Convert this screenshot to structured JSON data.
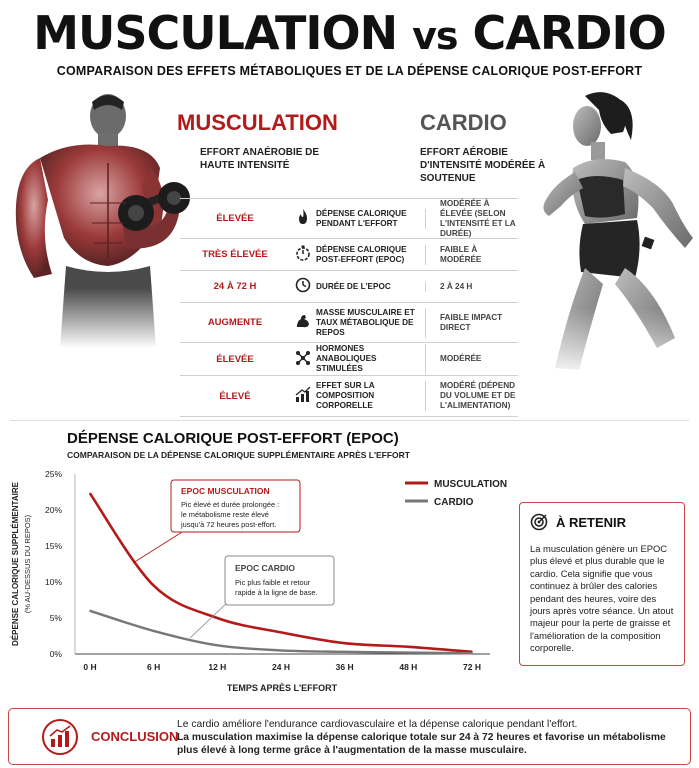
{
  "header": {
    "title_a": "MUSCULATION",
    "title_vs": "vs",
    "title_b": "CARDIO",
    "subtitle": "COMPARAISON DES EFFETS MÉTABOLIQUES ET DE LA DÉPENSE CALORIQUE POST-EFFORT"
  },
  "columns": {
    "left": {
      "heading": "MUSCULATION",
      "sub": "EFFORT ANAÉROBIE DE HAUTE INTENSITÉ"
    },
    "right": {
      "heading": "CARDIO",
      "sub": "EFFORT AÉROBIE D'INTENSITÉ MODÉRÉE À SOUTENUE"
    }
  },
  "table": [
    {
      "musc": "ÉLEVÉE",
      "icon": "flame-icon",
      "label": "DÉPENSE CALORIQUE PENDANT L'EFFORT",
      "cardio": "MODÉRÉE À ÉLEVÉE (SELON L'INTENSITÉ ET LA DURÉE)"
    },
    {
      "musc": "TRÈS ÉLEVÉE",
      "icon": "timer-icon",
      "label": "DÉPENSE CALORIQUE POST-EFFORT (EPOC)",
      "cardio": "FAIBLE À MODÉRÉE"
    },
    {
      "musc": "24 À 72 H",
      "icon": "clock-icon",
      "label": "DURÉE DE L'EPOC",
      "cardio": "2 À 24 H"
    },
    {
      "musc": "AUGMENTE",
      "icon": "bicep-icon",
      "label": "MASSE MUSCULAIRE ET TAUX MÉTABOLIQUE DE REPOS",
      "cardio": "FAIBLE IMPACT DIRECT"
    },
    {
      "musc": "ÉLEVÉE",
      "icon": "molecule-icon",
      "label": "HORMONES ANABOLIQUES STIMULÉES",
      "cardio": "MODÉRÉE"
    },
    {
      "musc": "ÉLEVÉ",
      "icon": "growth-chart-icon",
      "label": "EFFET SUR LA COMPOSITION CORPORELLE",
      "cardio": "MODÉRÉ (DÉPEND DU VOLUME ET DE L'ALIMENTATION)"
    }
  ],
  "chart_section": {
    "title": "DÉPENSE CALORIQUE POST-EFFORT (EPOC)",
    "subtitle": "COMPARAISON DE LA DÉPENSE CALORIQUE SUPPLÉMENTAIRE APRÈS L'EFFORT",
    "annot_musc_title": "EPOC MUSCULATION",
    "annot_musc_text": [
      "Pic élevé et durée prolongée :",
      "le métabolisme reste élevé",
      "jusqu'à 72 heures post-effort."
    ],
    "annot_cardio_title": "EPOC CARDIO",
    "annot_cardio_text": [
      "Pic plus faible et retour",
      "rapide à la ligne de base."
    ]
  },
  "chart_data": {
    "type": "line",
    "categories": [
      "0 H",
      "6 H",
      "12 H",
      "24 H",
      "36 H",
      "48 H",
      "72 H"
    ],
    "x": [
      0,
      1,
      2,
      3,
      4,
      5,
      6
    ],
    "series": [
      {
        "name": "MUSCULATION",
        "color": "#b31b1b",
        "values": [
          22.3,
          9.5,
          5.0,
          3.0,
          1.5,
          1.0,
          0.3
        ]
      },
      {
        "name": "CARDIO",
        "color": "#777777",
        "values": [
          6.0,
          3.2,
          1.2,
          0.5,
          0.3,
          0.2,
          0.1
        ]
      }
    ],
    "ylim": [
      0,
      25
    ],
    "yticks": [
      "0%",
      "5%",
      "10%",
      "15%",
      "20%",
      "25%"
    ],
    "xlabel": "TEMPS APRÈS L'EFFORT",
    "ylabel": "DÉPENSE CALORIQUE SUPPLÉMENTAIRE",
    "ylabel2": "(% AU-DESSUS DU REPOS)",
    "legend": "top-right",
    "grid": false
  },
  "retain": {
    "title": "À RETENIR",
    "body": "La musculation génère un EPOC plus élevé et plus durable que le cardio. Cela signifie que vous continuez à brûler des calories pendant des heures, voire des jours après votre séance. Un atout majeur pour la perte de graisse et l'amélioration de la composition corporelle."
  },
  "conclusion": {
    "label": "CONCLUSION",
    "line1": "Le cardio améliore l'endurance cardiovasculaire et la dépense calorique pendant l'effort.",
    "line2": "La musculation maximise la dépense calorique totale sur 24 à 72 heures et favorise un métabolisme plus élevé à long terme grâce à l'augmentation de la masse musculaire."
  }
}
